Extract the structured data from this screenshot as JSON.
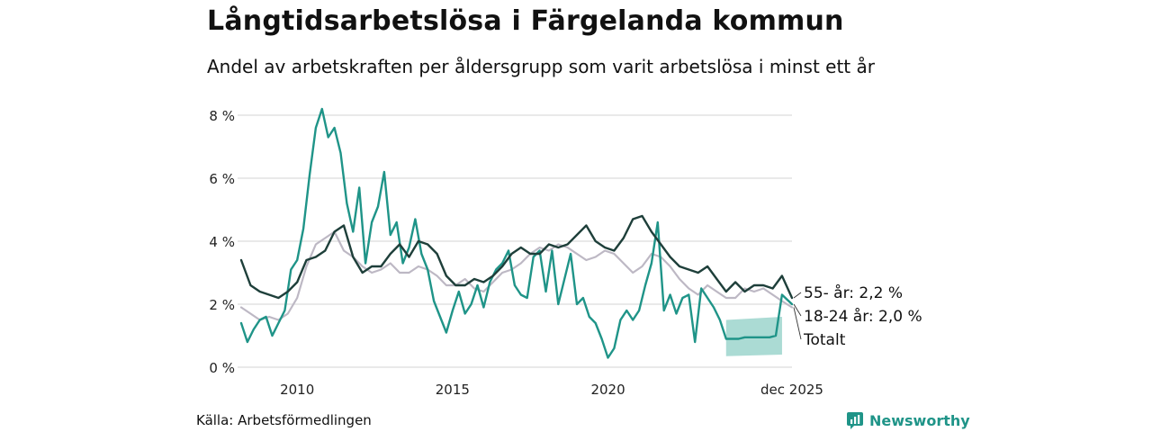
{
  "title": "Långtidsarbetslösa i Färgelanda kommun",
  "subtitle": "Andel av arbetskraften per åldersgrupp som varit arbetslösa i minst ett år",
  "source": "Källa: Arbetsförmedlingen",
  "brand": "Newsworthy",
  "colors": {
    "age55": "#1e3f3a",
    "age1824": "#1f9488",
    "total": "#bdb8c4",
    "band": "#a7d9d2",
    "grid": "#e2e2e2"
  },
  "chart_data": {
    "type": "line",
    "title": "Långtidsarbetslösa i Färgelanda kommun",
    "xlabel": "",
    "ylabel": "",
    "ylim": [
      0,
      8
    ],
    "xlim": [
      2008.2,
      2025.92
    ],
    "y_ticks": [
      0,
      2,
      4,
      6,
      8
    ],
    "y_tick_labels": [
      "0 %",
      "2 %",
      "4 %",
      "6 %",
      "8 %"
    ],
    "x_ticks": [
      2010,
      2015,
      2020,
      2025.92
    ],
    "x_tick_labels": [
      "2010",
      "2015",
      "2020",
      "dec 2025"
    ],
    "series": [
      {
        "key": "total",
        "name": "Totalt",
        "end_label": "Totalt",
        "x": [
          2008.2,
          2008.5,
          2008.8,
          2009.1,
          2009.4,
          2009.7,
          2010.0,
          2010.3,
          2010.6,
          2010.9,
          2011.2,
          2011.5,
          2011.8,
          2012.1,
          2012.4,
          2012.7,
          2013.0,
          2013.3,
          2013.6,
          2013.9,
          2014.2,
          2014.5,
          2014.8,
          2015.1,
          2015.4,
          2015.7,
          2016.0,
          2016.3,
          2016.6,
          2016.9,
          2017.2,
          2017.5,
          2017.8,
          2018.1,
          2018.4,
          2018.7,
          2019.0,
          2019.3,
          2019.6,
          2019.9,
          2020.2,
          2020.5,
          2020.8,
          2021.1,
          2021.4,
          2021.7,
          2022.0,
          2022.3,
          2022.6,
          2022.9,
          2023.2,
          2023.5,
          2023.8,
          2024.1,
          2024.4,
          2024.7,
          2025.0,
          2025.3,
          2025.6,
          2025.92
        ],
        "values": [
          1.9,
          1.7,
          1.5,
          1.6,
          1.5,
          1.7,
          2.2,
          3.2,
          3.9,
          4.1,
          4.3,
          3.7,
          3.5,
          3.2,
          3.0,
          3.1,
          3.3,
          3.0,
          3.0,
          3.2,
          3.1,
          2.9,
          2.6,
          2.6,
          2.8,
          2.5,
          2.4,
          2.7,
          3.0,
          3.1,
          3.3,
          3.6,
          3.8,
          3.7,
          3.9,
          3.8,
          3.6,
          3.4,
          3.5,
          3.7,
          3.6,
          3.3,
          3.0,
          3.2,
          3.6,
          3.5,
          3.2,
          2.8,
          2.5,
          2.3,
          2.6,
          2.4,
          2.2,
          2.2,
          2.5,
          2.4,
          2.5,
          2.3,
          2.1,
          1.9
        ]
      },
      {
        "key": "age1824",
        "name": "18-24 år",
        "end_label": "18-24 år: 2,0 %",
        "x": [
          2008.2,
          2008.4,
          2008.6,
          2008.8,
          2009.0,
          2009.2,
          2009.4,
          2009.6,
          2009.8,
          2010.0,
          2010.2,
          2010.4,
          2010.6,
          2010.8,
          2011.0,
          2011.2,
          2011.4,
          2011.6,
          2011.8,
          2012.0,
          2012.2,
          2012.4,
          2012.6,
          2012.8,
          2013.0,
          2013.2,
          2013.4,
          2013.6,
          2013.8,
          2014.0,
          2014.2,
          2014.4,
          2014.6,
          2014.8,
          2015.0,
          2015.2,
          2015.4,
          2015.6,
          2015.8,
          2016.0,
          2016.2,
          2016.4,
          2016.6,
          2016.8,
          2017.0,
          2017.2,
          2017.4,
          2017.6,
          2017.8,
          2018.0,
          2018.2,
          2018.4,
          2018.6,
          2018.8,
          2019.0,
          2019.2,
          2019.4,
          2019.6,
          2019.8,
          2020.0,
          2020.2,
          2020.4,
          2020.6,
          2020.8,
          2021.0,
          2021.2,
          2021.4,
          2021.6,
          2021.8,
          2022.0,
          2022.2,
          2022.4,
          2022.6,
          2022.8,
          2023.0,
          2023.2,
          2023.4,
          2023.6,
          2023.8,
          2024.0,
          2024.2,
          2024.4,
          2024.6,
          2024.8,
          2025.0,
          2025.2,
          2025.4,
          2025.6,
          2025.92
        ],
        "values": [
          1.4,
          0.8,
          1.2,
          1.5,
          1.6,
          1.0,
          1.4,
          1.8,
          3.1,
          3.4,
          4.4,
          6.1,
          7.6,
          8.2,
          7.3,
          7.6,
          6.8,
          5.2,
          4.3,
          5.7,
          3.3,
          4.6,
          5.1,
          6.2,
          4.2,
          4.6,
          3.3,
          3.8,
          4.7,
          3.6,
          3.1,
          2.1,
          1.6,
          1.1,
          1.8,
          2.4,
          1.7,
          2.0,
          2.6,
          1.9,
          2.7,
          3.1,
          3.3,
          3.7,
          2.6,
          2.3,
          2.2,
          3.5,
          3.7,
          2.4,
          3.7,
          2.0,
          2.8,
          3.6,
          2.0,
          2.2,
          1.6,
          1.4,
          0.9,
          0.3,
          0.6,
          1.5,
          1.8,
          1.5,
          1.8,
          2.6,
          3.3,
          4.6,
          1.8,
          2.3,
          1.7,
          2.2,
          2.3,
          0.8,
          2.5,
          2.2,
          1.9,
          1.5,
          0.9,
          0.9,
          0.9,
          0.95,
          0.95,
          0.95,
          0.95,
          0.95,
          1.0,
          2.3,
          2.0
        ]
      },
      {
        "key": "age55",
        "name": "55- år",
        "end_label": "55- år: 2,2 %",
        "x": [
          2008.2,
          2008.5,
          2008.8,
          2009.1,
          2009.4,
          2009.7,
          2010.0,
          2010.3,
          2010.6,
          2010.9,
          2011.2,
          2011.5,
          2011.8,
          2012.1,
          2012.4,
          2012.7,
          2013.0,
          2013.3,
          2013.6,
          2013.9,
          2014.2,
          2014.5,
          2014.8,
          2015.1,
          2015.4,
          2015.7,
          2016.0,
          2016.3,
          2016.6,
          2016.9,
          2017.2,
          2017.5,
          2017.8,
          2018.1,
          2018.4,
          2018.7,
          2019.0,
          2019.3,
          2019.6,
          2019.9,
          2020.2,
          2020.5,
          2020.8,
          2021.1,
          2021.4,
          2021.7,
          2022.0,
          2022.3,
          2022.6,
          2022.9,
          2023.2,
          2023.5,
          2023.8,
          2024.1,
          2024.4,
          2024.7,
          2025.0,
          2025.3,
          2025.6,
          2025.92
        ],
        "values": [
          3.4,
          2.6,
          2.4,
          2.3,
          2.2,
          2.4,
          2.7,
          3.4,
          3.5,
          3.7,
          4.3,
          4.5,
          3.5,
          3.0,
          3.2,
          3.2,
          3.6,
          3.9,
          3.5,
          4.0,
          3.9,
          3.6,
          2.9,
          2.6,
          2.6,
          2.8,
          2.7,
          2.9,
          3.2,
          3.6,
          3.8,
          3.6,
          3.6,
          3.9,
          3.8,
          3.9,
          4.2,
          4.5,
          4.0,
          3.8,
          3.7,
          4.1,
          4.7,
          4.8,
          4.3,
          3.9,
          3.5,
          3.2,
          3.1,
          3.0,
          3.2,
          2.8,
          2.4,
          2.7,
          2.4,
          2.6,
          2.6,
          2.5,
          2.9,
          2.2
        ]
      }
    ],
    "uncertainty_band": {
      "series": "age1824",
      "x": [
        2023.8,
        2025.6
      ],
      "lower": [
        0.35,
        0.4
      ],
      "upper": [
        1.5,
        1.6
      ]
    }
  }
}
